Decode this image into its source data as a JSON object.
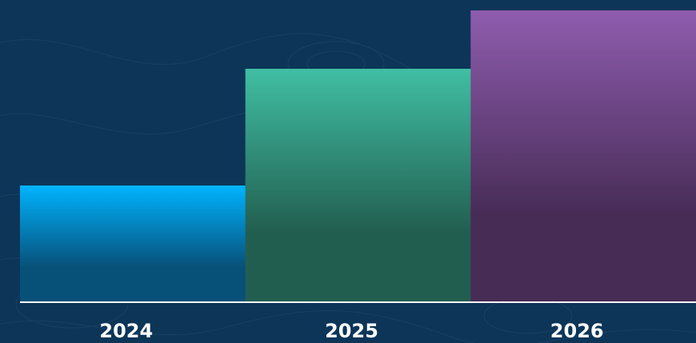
{
  "chart_data": {
    "type": "bar",
    "categories": [
      "2024",
      "2025",
      "2026"
    ],
    "values": [
      40,
      80,
      100
    ],
    "title": "",
    "xlabel": "",
    "ylabel": "",
    "ylim": [
      0,
      100
    ],
    "grid": false,
    "legend": "none"
  },
  "colors": {
    "background": "#0d3558",
    "baseline": "#ffffff",
    "bar_gradients": [
      [
        "#00b4ff",
        "#075179"
      ],
      [
        "#40bfa3",
        "#225e50"
      ],
      [
        "#8f5cae",
        "#472c56"
      ]
    ]
  }
}
